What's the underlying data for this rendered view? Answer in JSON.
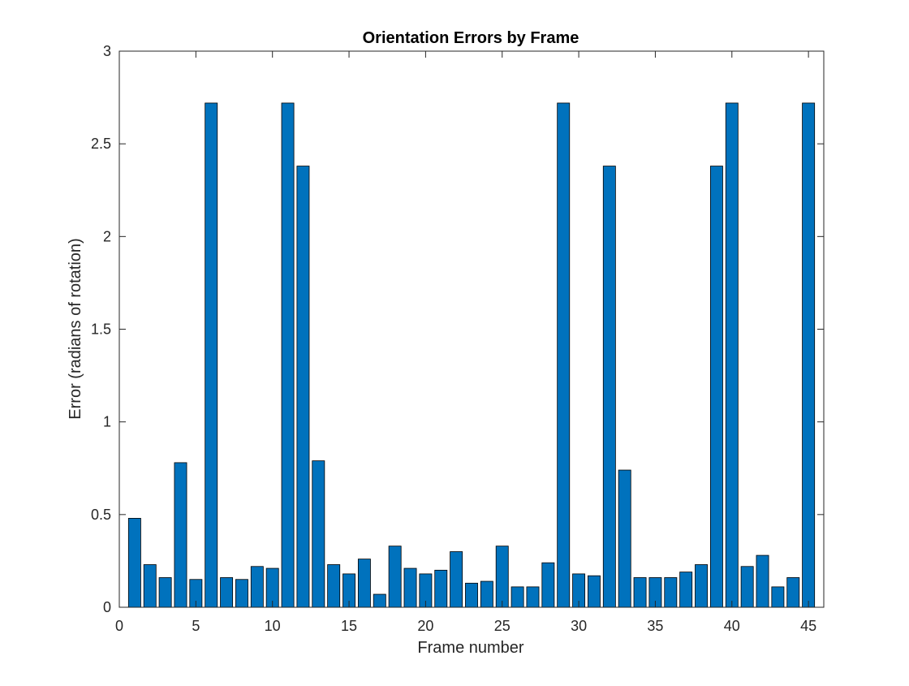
{
  "chart_data": {
    "type": "bar",
    "title": "Orientation Errors by Frame",
    "xlabel": "Frame number",
    "ylabel": "Error (radians of rotation)",
    "xlim": [
      0,
      46
    ],
    "ylim": [
      0,
      3
    ],
    "xticks": [
      0,
      5,
      10,
      15,
      20,
      25,
      30,
      35,
      40,
      45
    ],
    "yticks": [
      0,
      0.5,
      1,
      1.5,
      2,
      2.5,
      3
    ],
    "ytick_labels": [
      "0",
      "0.5",
      "1",
      "1.5",
      "2",
      "2.5",
      "3"
    ],
    "grid": false,
    "bar_color": "#0072BD",
    "bar_edge_color": "#000000",
    "x": [
      1,
      2,
      3,
      4,
      5,
      6,
      7,
      8,
      9,
      10,
      11,
      12,
      13,
      14,
      15,
      16,
      17,
      18,
      19,
      20,
      21,
      22,
      23,
      24,
      25,
      26,
      27,
      28,
      29,
      30,
      31,
      32,
      33,
      34,
      35,
      36,
      37,
      38,
      39,
      40,
      41,
      42,
      43,
      44,
      45
    ],
    "values": [
      0.48,
      0.23,
      0.16,
      0.78,
      0.15,
      2.72,
      0.16,
      0.15,
      0.22,
      0.21,
      2.72,
      2.38,
      0.79,
      0.23,
      0.18,
      0.26,
      0.07,
      0.33,
      0.21,
      0.18,
      0.2,
      0.3,
      0.13,
      0.14,
      0.33,
      0.11,
      0.11,
      0.24,
      2.72,
      0.18,
      0.17,
      2.38,
      0.74,
      0.16,
      0.16,
      0.16,
      0.19,
      0.23,
      2.38,
      2.72,
      0.22,
      0.28,
      0.11,
      0.16,
      2.72
    ]
  }
}
